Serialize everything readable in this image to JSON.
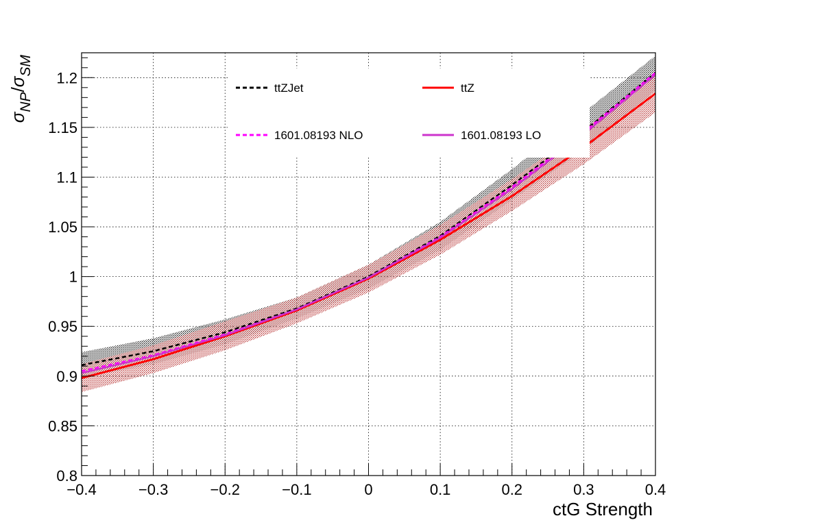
{
  "chart_data": {
    "type": "line",
    "xlabel": "ctG Strength",
    "ylabel": "σ_NP/σ_SM",
    "xlim": [
      -0.4,
      0.4
    ],
    "ylim": [
      0.8,
      1.225
    ],
    "grid": true,
    "legend_position": "top",
    "x_ticks": [
      -0.4,
      -0.3,
      -0.2,
      -0.1,
      0,
      0.1,
      0.2,
      0.3,
      0.4
    ],
    "x_tick_labels": [
      "−0.4",
      "−0.3",
      "−0.2",
      "−0.1",
      "0",
      "0.1",
      "0.2",
      "0.3",
      "0.4"
    ],
    "y_ticks": [
      0.8,
      0.85,
      0.9,
      0.95,
      1,
      1.05,
      1.1,
      1.15,
      1.2
    ],
    "y_tick_labels": [
      "0.8",
      "0.85",
      "0.9",
      "0.95",
      "1",
      "1.05",
      "1.1",
      "1.15",
      "1.2"
    ],
    "x": [
      -0.4,
      -0.3,
      -0.2,
      -0.1,
      0,
      0.1,
      0.2,
      0.3,
      0.4
    ],
    "series": [
      {
        "name": "ttZJet",
        "style": "dashed",
        "color": "#000000",
        "values": [
          0.911,
          0.925,
          0.944,
          0.968,
          1.0,
          1.041,
          1.092,
          1.146,
          1.205
        ],
        "band": {
          "lower": [
            0.898,
            0.912,
            0.932,
            0.958,
            0.988,
            1.027,
            1.077,
            1.127,
            1.187
          ],
          "upper": [
            0.924,
            0.938,
            0.957,
            0.979,
            1.012,
            1.055,
            1.108,
            1.165,
            1.222
          ],
          "color": "#000000"
        }
      },
      {
        "name": "ttZ",
        "style": "solid",
        "color": "#ff0000",
        "values": [
          0.898,
          0.917,
          0.94,
          0.966,
          0.998,
          1.037,
          1.081,
          1.13,
          1.184
        ],
        "band": {
          "lower": [
            0.884,
            0.903,
            0.926,
            0.953,
            0.984,
            1.022,
            1.066,
            1.113,
            1.165
          ],
          "upper": [
            0.912,
            0.931,
            0.955,
            0.979,
            1.012,
            1.052,
            1.098,
            1.148,
            1.203
          ],
          "color": "#b22222"
        }
      },
      {
        "name": "1601.08193 NLO",
        "style": "dashed",
        "color": "#ff00ff",
        "values": [
          0.905,
          0.921,
          0.942,
          0.967,
          0.999,
          1.04,
          1.09,
          1.145,
          1.205
        ]
      },
      {
        "name": "1601.08193 LO",
        "style": "solid",
        "color": "#cc33cc",
        "values": [
          0.903,
          0.92,
          0.941,
          0.967,
          0.999,
          1.039,
          1.088,
          1.143,
          1.203
        ]
      }
    ],
    "legend": [
      {
        "label": "ttZJet",
        "series": 0
      },
      {
        "label": "ttZ",
        "series": 1
      },
      {
        "label": "1601.08193 NLO",
        "series": 2
      },
      {
        "label": "1601.08193 LO",
        "series": 3
      }
    ]
  }
}
